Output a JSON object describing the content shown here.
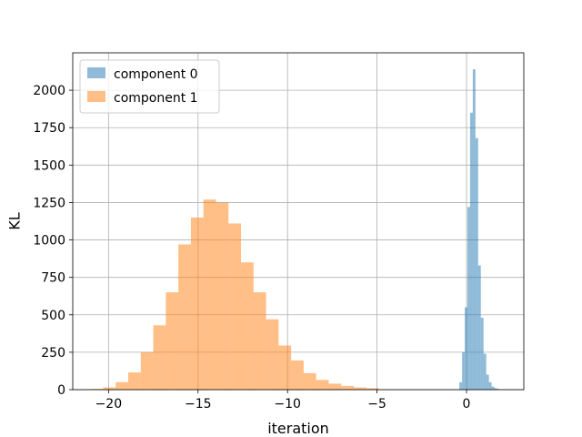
{
  "chart_data": {
    "type": "bar",
    "title": "",
    "xlabel": "iteration",
    "ylabel": "KL",
    "xlim": [
      -22,
      3.2
    ],
    "ylim": [
      0,
      2250
    ],
    "xticks": [
      -20,
      -15,
      -10,
      -5,
      0
    ],
    "xtick_labels": [
      "−20",
      "−15",
      "−10",
      "−5",
      "0"
    ],
    "yticks": [
      0,
      250,
      500,
      750,
      1000,
      1250,
      1500,
      1750,
      2000
    ],
    "ytick_labels": [
      "0",
      "250",
      "500",
      "750",
      "1000",
      "1250",
      "1500",
      "1750",
      "2000"
    ],
    "grid": true,
    "legend_position": "top-left",
    "series": [
      {
        "name": "component 0",
        "color": "#1f77b4",
        "alpha": 0.5,
        "bin_edges": [
          -0.4,
          -0.25,
          -0.1,
          0.05,
          0.2,
          0.35,
          0.5,
          0.65,
          0.8,
          0.95,
          1.1,
          1.25,
          1.4,
          1.55,
          1.7,
          1.85
        ],
        "counts": [
          50,
          250,
          550,
          1220,
          1850,
          2140,
          1680,
          830,
          480,
          240,
          100,
          50,
          20,
          10,
          5
        ]
      },
      {
        "name": "component 1",
        "color": "#ff7f0e",
        "alpha": 0.5,
        "bin_edges": [
          -21.0,
          -20.3,
          -19.6,
          -18.9,
          -18.2,
          -17.5,
          -16.8,
          -16.1,
          -15.4,
          -14.7,
          -14.0,
          -13.3,
          -12.6,
          -11.9,
          -11.2,
          -10.5,
          -9.8,
          -9.1,
          -8.4,
          -7.7,
          -7.0,
          -6.3,
          -5.6,
          -4.9
        ],
        "counts": [
          5,
          15,
          50,
          115,
          250,
          430,
          650,
          970,
          1150,
          1270,
          1250,
          1110,
          850,
          650,
          470,
          295,
          195,
          110,
          65,
          40,
          25,
          15,
          10
        ]
      }
    ]
  }
}
